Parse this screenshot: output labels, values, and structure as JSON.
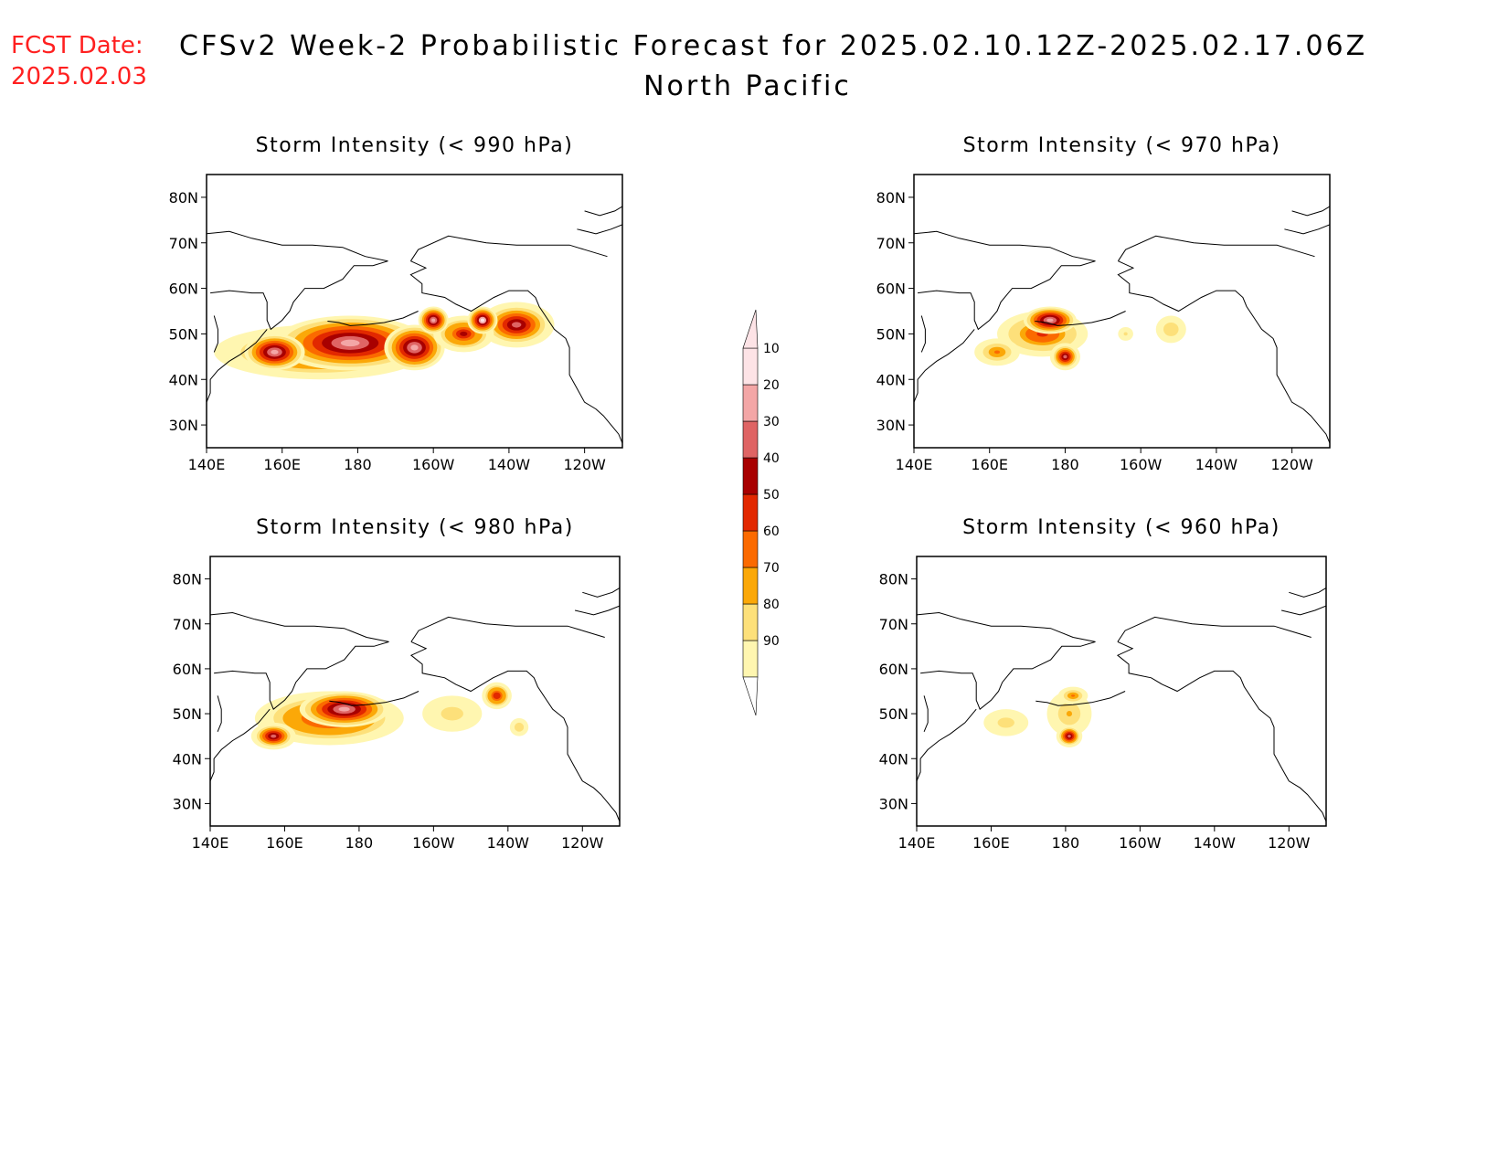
{
  "fcst_date": {
    "label": "FCST Date:",
    "value": "2025.02.03",
    "color": "#ff2020"
  },
  "title": {
    "line1": "CFSv2 Week-2 Probabilistic Forecast for 2025.02.10.12Z-2025.02.17.06Z",
    "line2": "North Pacific"
  },
  "colorbar": {
    "levels": [
      "10",
      "20",
      "30",
      "40",
      "50",
      "60",
      "70",
      "80",
      "90"
    ],
    "colors": [
      "#ffffff",
      "#fff6b0",
      "#fde07a",
      "#fba808",
      "#fb6a00",
      "#e22800",
      "#a80000",
      "#df6464",
      "#f3a6a6",
      "#fde3e6"
    ]
  },
  "axes": {
    "x_ticks": [
      "140E",
      "160E",
      "180",
      "160W",
      "140W",
      "120W"
    ],
    "y_ticks": [
      "30N",
      "40N",
      "50N",
      "60N",
      "70N",
      "80N"
    ]
  },
  "panels": [
    {
      "id": "p990",
      "title": "Storm Intensity (< 990 hPa)",
      "blobs": [
        {
          "lon": 170,
          "lat": 46,
          "rlon": 28,
          "rlat": 6,
          "prob": 58
        },
        {
          "lon": 178,
          "lat": 48,
          "rlon": 20,
          "rlat": 6,
          "prob": 88
        },
        {
          "lon": 158,
          "lat": 46,
          "rlon": 8,
          "rlat": 4,
          "prob": 85
        },
        {
          "lon": 195,
          "lat": 47,
          "rlon": 8,
          "rlat": 5,
          "prob": 82
        },
        {
          "lon": 222,
          "lat": 52,
          "rlon": 10,
          "rlat": 5,
          "prob": 72
        },
        {
          "lon": 208,
          "lat": 50,
          "rlon": 8,
          "rlat": 4,
          "prob": 62
        },
        {
          "lon": 213,
          "lat": 53,
          "rlon": 4,
          "rlat": 3,
          "prob": 92
        },
        {
          "lon": 200,
          "lat": 53,
          "rlon": 4,
          "rlat": 3,
          "prob": 85
        }
      ]
    },
    {
      "id": "p970",
      "title": "Storm Intensity (< 970 hPa)",
      "blobs": [
        {
          "lon": 174,
          "lat": 50,
          "rlon": 12,
          "rlat": 5,
          "prob": 55
        },
        {
          "lon": 176,
          "lat": 53,
          "rlon": 7,
          "rlat": 3,
          "prob": 80
        },
        {
          "lon": 162,
          "lat": 46,
          "rlon": 6,
          "rlat": 3,
          "prob": 40
        },
        {
          "lon": 180,
          "lat": 45,
          "rlon": 4,
          "rlat": 3,
          "prob": 72
        },
        {
          "lon": 208,
          "lat": 51,
          "rlon": 4,
          "rlat": 3,
          "prob": 28
        },
        {
          "lon": 196,
          "lat": 50,
          "rlon": 2,
          "rlat": 1.5,
          "prob": 22
        }
      ]
    },
    {
      "id": "p980",
      "title": "Storm Intensity (< 980 hPa)",
      "blobs": [
        {
          "lon": 172,
          "lat": 49,
          "rlon": 20,
          "rlat": 6,
          "prob": 62
        },
        {
          "lon": 176,
          "lat": 51,
          "rlon": 12,
          "rlat": 4,
          "prob": 85
        },
        {
          "lon": 157,
          "lat": 45,
          "rlon": 6,
          "rlat": 3,
          "prob": 72
        },
        {
          "lon": 205,
          "lat": 50,
          "rlon": 8,
          "rlat": 4,
          "prob": 25
        },
        {
          "lon": 217,
          "lat": 54,
          "rlon": 4,
          "rlat": 3,
          "prob": 58
        },
        {
          "lon": 223,
          "lat": 47,
          "rlon": 2.5,
          "rlat": 2,
          "prob": 28
        }
      ]
    },
    {
      "id": "p960",
      "title": "Storm Intensity (< 960 hPa)",
      "blobs": [
        {
          "lon": 181,
          "lat": 50,
          "rlon": 6,
          "rlat": 5,
          "prob": 30
        },
        {
          "lon": 181,
          "lat": 45,
          "rlon": 3.5,
          "rlat": 2.5,
          "prob": 72
        },
        {
          "lon": 182,
          "lat": 54,
          "rlon": 4,
          "rlat": 2,
          "prob": 42
        },
        {
          "lon": 164,
          "lat": 48,
          "rlon": 6,
          "rlat": 3,
          "prob": 25
        }
      ]
    }
  ]
}
